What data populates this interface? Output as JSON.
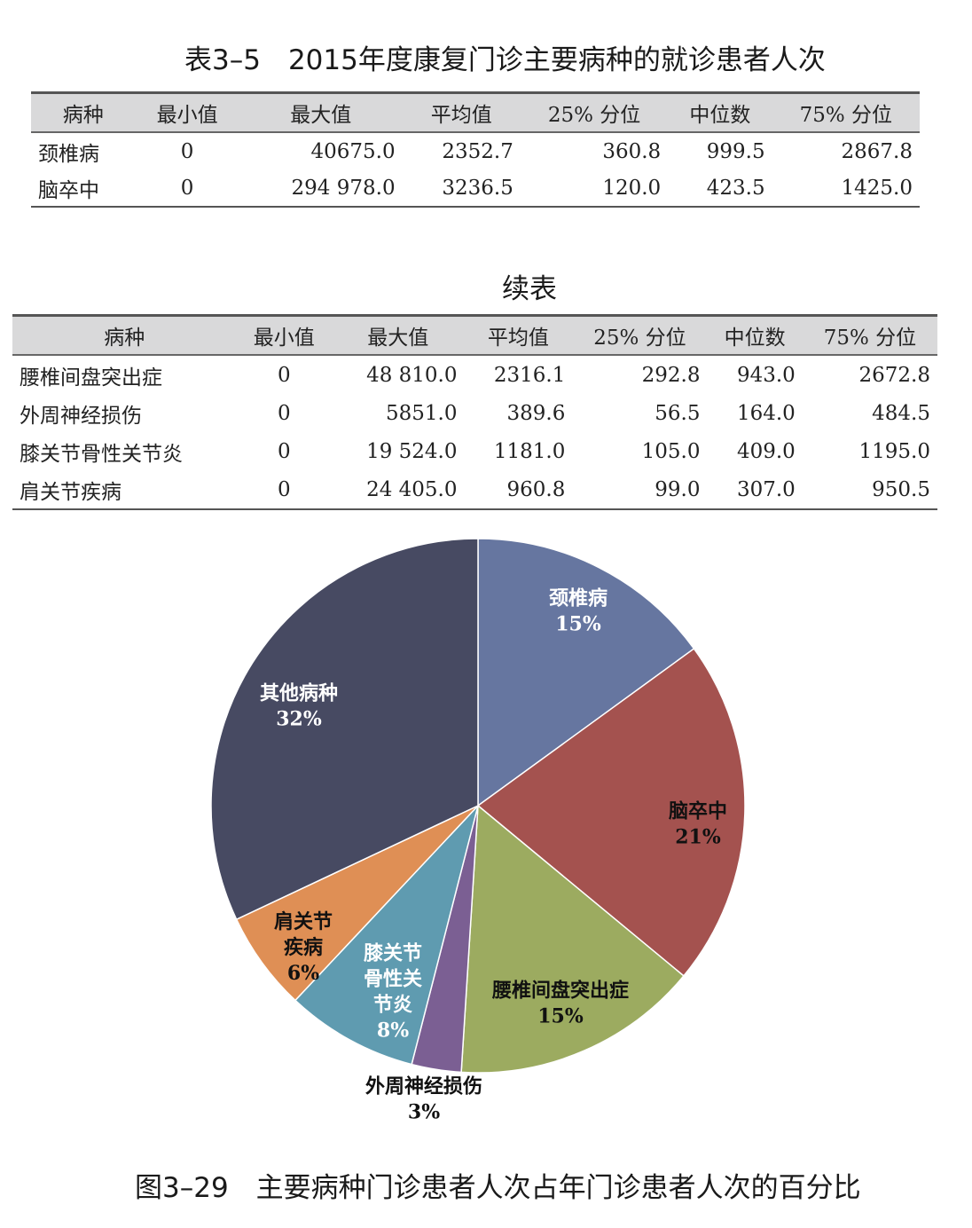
{
  "table1": {
    "title": "表3–5　2015年度康复门诊主要病种的就诊患者人次",
    "headers": [
      "病种",
      "最小值",
      "最大值",
      "平均值",
      "25% 分位",
      "中位数",
      "75% 分位"
    ],
    "rows": [
      [
        "颈椎病",
        "0",
        "40675.0",
        "2352.7",
        "360.8",
        "999.5",
        "2867.8"
      ],
      [
        "脑卒中",
        "0",
        "294 978.0",
        "3236.5",
        "120.0",
        "423.5",
        "1425.0"
      ]
    ]
  },
  "table2": {
    "title": "续表",
    "headers": [
      "病种",
      "最小值",
      "最大值",
      "平均值",
      "25% 分位",
      "中位数",
      "75% 分位"
    ],
    "rows": [
      [
        "腰椎间盘突出症",
        "0",
        "48 810.0",
        "2316.1",
        "292.8",
        "943.0",
        "2672.8"
      ],
      [
        "外周神经损伤",
        "0",
        "5851.0",
        "389.6",
        "56.5",
        "164.0",
        "484.5"
      ],
      [
        "膝关节骨性关节炎",
        "0",
        "19 524.0",
        "1181.0",
        "105.0",
        "409.0",
        "1195.0"
      ],
      [
        "肩关节疾病",
        "0",
        "24 405.0",
        "960.8",
        "99.0",
        "307.0",
        "950.5"
      ]
    ]
  },
  "chart_data": {
    "type": "pie",
    "title": "图3–29　主要病种门诊患者人次占年门诊患者人次的百分比",
    "start": "top, clockwise",
    "slices": [
      {
        "name": "颈椎病",
        "value": 15,
        "label_lines": [
          "颈椎病",
          "15%"
        ],
        "color": "#6676a0"
      },
      {
        "name": "脑卒中",
        "value": 21,
        "label_lines": [
          "脑卒中",
          "21%"
        ],
        "color": "#a4524f"
      },
      {
        "name": "腰椎间盘突出症",
        "value": 15,
        "label_lines": [
          "腰椎间盘突出症",
          "15%"
        ],
        "color": "#9cab60"
      },
      {
        "name": "外周神经损伤",
        "value": 3,
        "label_lines": [
          "外周神经损伤",
          "3%"
        ],
        "color": "#7b5f93"
      },
      {
        "name": "膝关节骨性关节炎",
        "value": 8,
        "label_lines": [
          "膝关节",
          "骨性关",
          "节炎",
          "8%"
        ],
        "color": "#5f9bb0"
      },
      {
        "name": "肩关节疾病",
        "value": 6,
        "label_lines": [
          "肩关节",
          "疾病",
          "6%"
        ],
        "color": "#df8f55"
      },
      {
        "name": "其他病种",
        "value": 32,
        "label_lines": [
          "其他病种",
          "32%"
        ],
        "color": "#474a62"
      }
    ]
  }
}
